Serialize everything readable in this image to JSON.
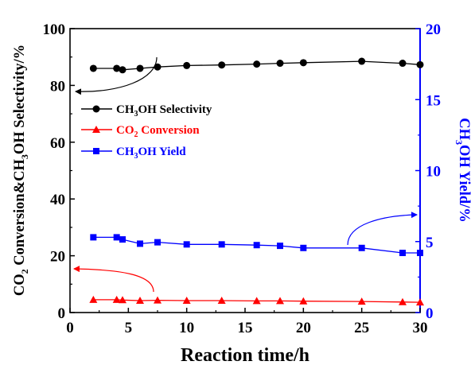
{
  "chart_data": {
    "type": "line",
    "xlabel": "Reaction time/h",
    "ylabel_left": [
      "CO",
      "2",
      " Conversion&CH",
      "3",
      "OH Selectivity/%"
    ],
    "ylabel_right": [
      "CH",
      "3",
      "OH Yield/%"
    ],
    "xlim": [
      0,
      30
    ],
    "ylim_left": [
      0,
      100
    ],
    "ylim_right": [
      0,
      20
    ],
    "xticks": [
      0,
      5,
      10,
      15,
      20,
      25,
      30
    ],
    "yticks_left": [
      0,
      20,
      40,
      60,
      80,
      100
    ],
    "yticks_right": [
      0,
      5,
      10,
      15,
      20
    ],
    "grid": false,
    "legend_position": "upper-left",
    "series": [
      {
        "key": "selectivity",
        "legend": [
          "CH",
          "3",
          "OH Selectivity"
        ],
        "color": "#000000",
        "marker": "circle",
        "axis": "left",
        "x": [
          2,
          4,
          4.5,
          6,
          7.5,
          10,
          13,
          16,
          18,
          20,
          25,
          28.5,
          30
        ],
        "y": [
          86.0,
          86.0,
          85.5,
          86.0,
          86.5,
          87.0,
          87.2,
          87.5,
          87.8,
          88.0,
          88.5,
          87.8,
          87.3
        ]
      },
      {
        "key": "conversion",
        "legend": [
          "CO",
          "2",
          " Conversion"
        ],
        "color": "#ff0000",
        "marker": "triangle",
        "axis": "left",
        "x": [
          2,
          4,
          4.5,
          6,
          7.5,
          10,
          13,
          16,
          18,
          20,
          25,
          28.5,
          30
        ],
        "y": [
          4.5,
          4.5,
          4.4,
          4.2,
          4.3,
          4.2,
          4.2,
          4.1,
          4.1,
          4.0,
          3.9,
          3.7,
          3.6
        ]
      },
      {
        "key": "yield",
        "legend": [
          "CH",
          "3",
          "OH Yield"
        ],
        "color": "#0000ff",
        "marker": "square",
        "axis": "right",
        "x": [
          2,
          4,
          4.5,
          6,
          7.5,
          10,
          13,
          16,
          18,
          20,
          25,
          28.5,
          30
        ],
        "y": [
          5.3,
          5.3,
          5.15,
          4.85,
          4.95,
          4.8,
          4.8,
          4.75,
          4.7,
          4.55,
          4.55,
          4.2,
          4.2
        ]
      }
    ],
    "axis_colors": {
      "left": "#000000",
      "right": "#0000ff"
    }
  }
}
